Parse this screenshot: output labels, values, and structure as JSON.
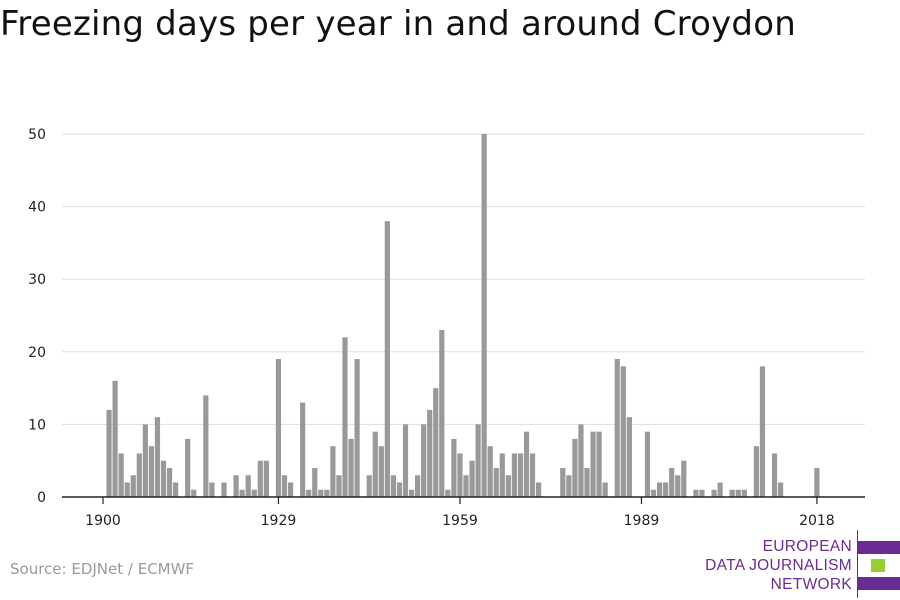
{
  "title": "Freezing days per year in and around Croydon",
  "source": "Source: EDJNet / ECMWF",
  "logo": {
    "lines": [
      "EUROPEAN",
      "DATA JOURNALISM",
      "NETWORK"
    ],
    "colors": [
      "#6a2c91",
      "#9acd32",
      "#6a2c91"
    ]
  },
  "chart_data": {
    "type": "bar",
    "title": "Freezing days per year in and around Croydon",
    "xlabel": "",
    "ylabel": "",
    "color": "#999999",
    "grid": true,
    "ylim": [
      0,
      50
    ],
    "yticks": [
      0,
      10,
      20,
      30,
      40,
      50
    ],
    "xticks": [
      1900,
      1929,
      1959,
      1989,
      2018
    ],
    "x": [
      1900,
      1901,
      1902,
      1903,
      1904,
      1905,
      1906,
      1907,
      1908,
      1909,
      1910,
      1911,
      1912,
      1913,
      1914,
      1915,
      1916,
      1917,
      1918,
      1919,
      1920,
      1921,
      1922,
      1923,
      1924,
      1925,
      1926,
      1927,
      1928,
      1929,
      1930,
      1931,
      1932,
      1933,
      1934,
      1935,
      1936,
      1937,
      1938,
      1939,
      1940,
      1941,
      1942,
      1943,
      1944,
      1945,
      1946,
      1947,
      1948,
      1949,
      1950,
      1951,
      1952,
      1953,
      1954,
      1955,
      1956,
      1957,
      1958,
      1959,
      1960,
      1961,
      1962,
      1963,
      1964,
      1965,
      1966,
      1967,
      1968,
      1969,
      1970,
      1971,
      1972,
      1973,
      1974,
      1975,
      1976,
      1977,
      1978,
      1979,
      1980,
      1981,
      1982,
      1983,
      1984,
      1985,
      1986,
      1987,
      1988,
      1989,
      1990,
      1991,
      1992,
      1993,
      1994,
      1995,
      1996,
      1997,
      1998,
      1999,
      2000,
      2001,
      2002,
      2003,
      2004,
      2005,
      2006,
      2007,
      2008,
      2009,
      2010,
      2011,
      2012,
      2013,
      2014,
      2015,
      2016,
      2017,
      2018,
      2019
    ],
    "values": [
      0,
      12,
      16,
      6,
      2,
      3,
      6,
      10,
      7,
      11,
      5,
      4,
      2,
      0,
      8,
      1,
      0,
      14,
      2,
      0,
      2,
      0,
      3,
      1,
      3,
      1,
      5,
      5,
      0,
      19,
      3,
      2,
      0,
      13,
      1,
      4,
      1,
      1,
      7,
      3,
      22,
      8,
      19,
      0,
      3,
      9,
      7,
      38,
      3,
      2,
      10,
      1,
      3,
      10,
      12,
      15,
      23,
      1,
      8,
      6,
      3,
      5,
      10,
      50,
      7,
      4,
      6,
      3,
      6,
      6,
      9,
      6,
      2,
      0,
      0,
      0,
      4,
      3,
      8,
      10,
      4,
      9,
      9,
      2,
      0,
      19,
      18,
      11,
      0,
      0,
      9,
      1,
      2,
      2,
      4,
      3,
      5,
      0,
      1,
      1,
      0,
      1,
      2,
      0,
      1,
      1,
      1,
      0,
      7,
      18,
      0,
      6,
      2,
      0,
      0,
      0,
      0,
      0,
      4,
      0
    ]
  }
}
